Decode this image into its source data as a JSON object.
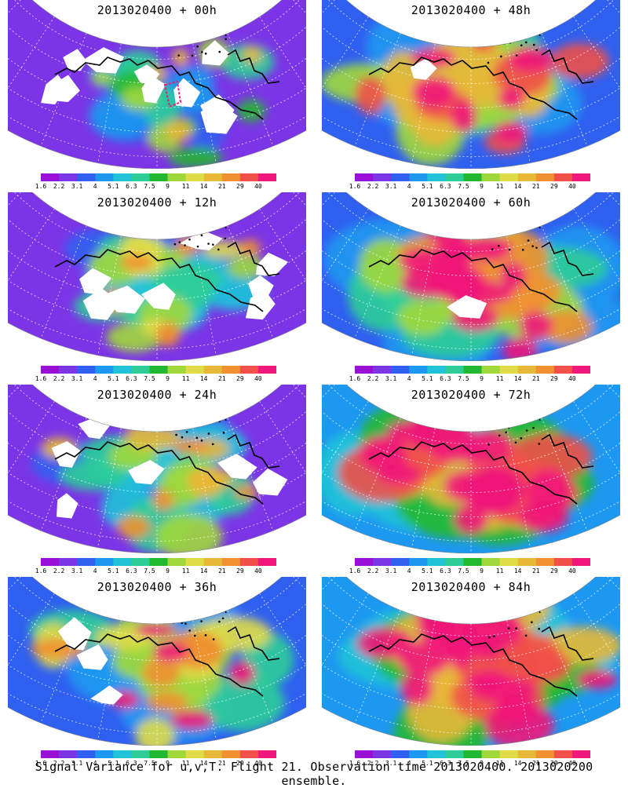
{
  "panels": [
    {
      "title": "2013020400 + 00h",
      "level": 0.15,
      "holes": 10,
      "box": true
    },
    {
      "title": "2013020400 + 48h",
      "level": 0.55,
      "holes": 1,
      "box": false
    },
    {
      "title": "2013020400 + 12h",
      "level": 0.25,
      "holes": 8,
      "box": false
    },
    {
      "title": "2013020400 + 60h",
      "level": 0.6,
      "holes": 1,
      "box": false
    },
    {
      "title": "2013020400 + 24h",
      "level": 0.32,
      "holes": 6,
      "box": false
    },
    {
      "title": "2013020400 + 72h",
      "level": 0.66,
      "holes": 0,
      "box": false
    },
    {
      "title": "2013020400 + 36h",
      "level": 0.4,
      "holes": 3,
      "box": false
    },
    {
      "title": "2013020400 + 84h",
      "level": 0.72,
      "holes": 0,
      "box": false
    }
  ],
  "colorbar": {
    "labels": [
      "1.6",
      "2.2",
      "3.1",
      "4",
      "5.1",
      "6.3",
      "7.5",
      "9",
      "11",
      "14",
      "21",
      "29",
      "40"
    ],
    "colors": [
      "#9a10d8",
      "#7b35e6",
      "#3060f0",
      "#1d98f0",
      "#20c3d8",
      "#2ecd98",
      "#22b830",
      "#a0d83c",
      "#e0dc48",
      "#e8b838",
      "#f09030",
      "#f05048",
      "#f0187a"
    ]
  },
  "caption": "Signal Variance for u,v,T. Flight 21. Observation time 2013020400. 2013020200 ensemble."
}
